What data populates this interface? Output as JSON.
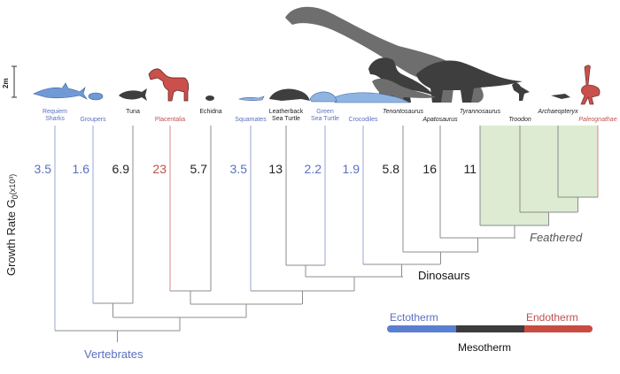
{
  "colors": {
    "ecto": "#5a70c0",
    "meso": "#222222",
    "endo": "#c0504d",
    "feather_fill": "#dcebd2",
    "line": "#8c8c8c",
    "silhouette_dark": "#3e3e3e",
    "silhouette_mid": "#6e6e6e",
    "shark_blue": "#6f9ad6",
    "horse_red": "#c9504b"
  },
  "axis_label": {
    "main": "Growth Rate G",
    "sub": "0",
    "unit": "(x10³)"
  },
  "scale_bar": "2m",
  "leaves": [
    {
      "name": "Requiem",
      "name2": "Sharks",
      "rate": "3.5",
      "class": "ecto",
      "row": 1
    },
    {
      "name": "Groupers",
      "rate": "1.6",
      "class": "ecto",
      "row": 2
    },
    {
      "name": "Tuna",
      "rate": "6.9",
      "class": "meso",
      "row": 1
    },
    {
      "name": "Placentalia",
      "rate": "23",
      "class": "endo",
      "row": 2
    },
    {
      "name": "Echidna",
      "rate": "5.7",
      "class": "meso",
      "row": 1
    },
    {
      "name": "Squamates",
      "rate": "3.5",
      "class": "ecto",
      "row": 2
    },
    {
      "name": "Leatherback",
      "name2": "Sea Turtle",
      "rate": "13",
      "class": "meso",
      "row": 1
    },
    {
      "name": "Green",
      "name2": "Sea Turtle",
      "rate": "2.2",
      "class": "ecto",
      "row": 1
    },
    {
      "name": "Crocodiles",
      "rate": "1.9",
      "class": "ecto",
      "row": 2
    },
    {
      "name": "Tenontosaurus",
      "rate": "5.8",
      "class": "meso",
      "row": 1,
      "italic": true
    },
    {
      "name": "Apatosaurus",
      "rate": "16",
      "class": "meso",
      "row": 2,
      "italic": true
    },
    {
      "name": "Tyrannosaurus",
      "rate": "11",
      "class": "meso",
      "row": 1,
      "italic": true
    },
    {
      "name": "Troodon",
      "class": "meso",
      "row": 2,
      "italic": true
    },
    {
      "name": "Archaeopteryx",
      "class": "meso",
      "row": 1,
      "italic": true
    },
    {
      "name": "Paleognathae",
      "class": "endo",
      "row": 2,
      "italic": true
    }
  ],
  "clades": {
    "dinosaurs": "Dinosaurs",
    "feathered": "Feathered",
    "vertebrates": "Vertebrates"
  },
  "legend": {
    "ectotherm": "Ectotherm",
    "mesotherm": "Mesotherm",
    "endotherm": "Endotherm"
  }
}
